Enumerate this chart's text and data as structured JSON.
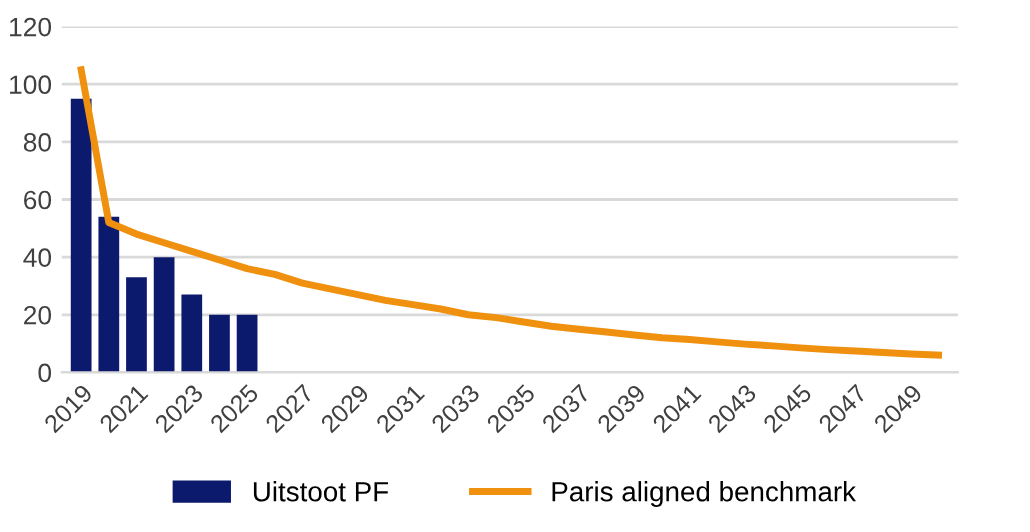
{
  "chart_data": {
    "type": "bar",
    "categories": [
      "2019",
      null,
      "2021",
      null,
      "2023",
      null,
      "2025",
      null,
      "2027",
      null,
      "2029",
      null,
      "2031",
      null,
      "2033",
      null,
      "2035",
      null,
      "2037",
      null,
      "2039",
      null,
      "2041",
      null,
      "2043",
      null,
      "2045",
      null,
      "2047",
      null,
      "2049",
      null
    ],
    "series": [
      {
        "name": "Uitstoot PF",
        "color": "#0c1a6e",
        "values": [
          95,
          54,
          33,
          40,
          27,
          20,
          20,
          null,
          null,
          null,
          null,
          null,
          null,
          null,
          null,
          null,
          null,
          null,
          null,
          null,
          null,
          null,
          null,
          null,
          null,
          null,
          null,
          null,
          null,
          null,
          null,
          null
        ]
      },
      {
        "name": "Paris aligned benchmark",
        "type": "line",
        "color": "#f0900f",
        "values": [
          105,
          52,
          48,
          45,
          42,
          39,
          36,
          34,
          31,
          29,
          27,
          25,
          23.5,
          22,
          20,
          19,
          17.5,
          16,
          15,
          14,
          13,
          12,
          11.4,
          10.6,
          9.8,
          9.2,
          8.5,
          7.9,
          7.4,
          6.9,
          6.4,
          6
        ]
      }
    ],
    "ylim": [
      0,
      120
    ],
    "yticks": [
      0,
      20,
      40,
      60,
      80,
      100,
      120
    ],
    "grid": "y",
    "legend": "bottom",
    "marker": "none",
    "line_style": "solid"
  }
}
